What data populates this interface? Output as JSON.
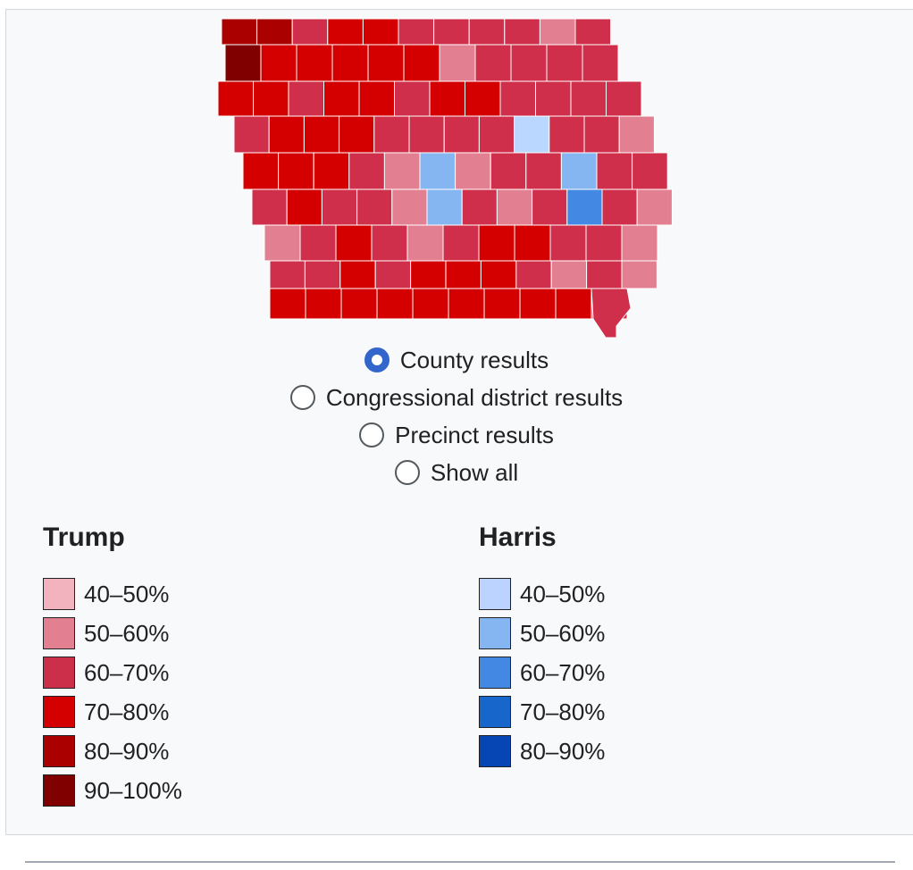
{
  "map": {
    "colors": {
      "r9": "#800000",
      "r8": "#aa0000",
      "r7": "#d40000",
      "r6": "#cf2f4a",
      "r5": "#e27f90",
      "r4": "#f2b3be",
      "b4": "#b9d7ff",
      "b5": "#86b6f2",
      "b6": "#4389e3",
      "b7": "#1666cb",
      "b8": "#0645b4"
    },
    "counties": [
      [
        "r8",
        "r8",
        "r6",
        "r7",
        "r7",
        "r6",
        "r6",
        "r6",
        "r6",
        "r5",
        "r6"
      ],
      [
        "r9",
        "r7",
        "r7",
        "r7",
        "r7",
        "r7",
        "r5",
        "r6",
        "r6",
        "r6",
        "r6"
      ],
      [
        "r7",
        "r7",
        "r6",
        "r7",
        "r7",
        "r6",
        "r7",
        "r7",
        "r6",
        "r6",
        "r6",
        "r6"
      ],
      [
        "r6",
        "r7",
        "r7",
        "r7",
        "r6",
        "r6",
        "r6",
        "r6",
        "b4",
        "r6",
        "r6",
        "r5"
      ],
      [
        "r7",
        "r7",
        "r7",
        "r6",
        "r5",
        "b5",
        "r5",
        "r6",
        "r6",
        "b5",
        "r6",
        "r6"
      ],
      [
        "r6",
        "r7",
        "r6",
        "r6",
        "r5",
        "b5",
        "r6",
        "r5",
        "r6",
        "b6",
        "r6",
        "r5"
      ],
      [
        "r5",
        "r6",
        "r7",
        "r6",
        "r5",
        "r6",
        "r7",
        "r7",
        "r6",
        "r6",
        "r5"
      ],
      [
        "r6",
        "r6",
        "r7",
        "r6",
        "r7",
        "r7",
        "r7",
        "r6",
        "r5",
        "r6",
        "r5"
      ],
      [
        "r7",
        "r7",
        "r7",
        "r7",
        "r7",
        "r7",
        "r7",
        "r7",
        "r7",
        "r6"
      ]
    ]
  },
  "view_options": [
    {
      "label": "County results",
      "checked": true
    },
    {
      "label": "Congressional district results",
      "checked": false
    },
    {
      "label": "Precinct results",
      "checked": false
    },
    {
      "label": "Show all",
      "checked": false
    }
  ],
  "legend": {
    "trump": {
      "title": "Trump",
      "items": [
        {
          "label": "40–50%",
          "color": "#f2b3be"
        },
        {
          "label": "50–60%",
          "color": "#e27f90"
        },
        {
          "label": "60–70%",
          "color": "#cc2f4a"
        },
        {
          "label": "70–80%",
          "color": "#d40000"
        },
        {
          "label": "80–90%",
          "color": "#aa0000"
        },
        {
          "label": "90–100%",
          "color": "#800000"
        }
      ]
    },
    "harris": {
      "title": "Harris",
      "items": [
        {
          "label": "40–50%",
          "color": "#bdd3ff"
        },
        {
          "label": "50–60%",
          "color": "#86b6f2"
        },
        {
          "label": "60–70%",
          "color": "#4389e3"
        },
        {
          "label": "70–80%",
          "color": "#1666cb"
        },
        {
          "label": "80–90%",
          "color": "#0645b4"
        }
      ]
    }
  }
}
